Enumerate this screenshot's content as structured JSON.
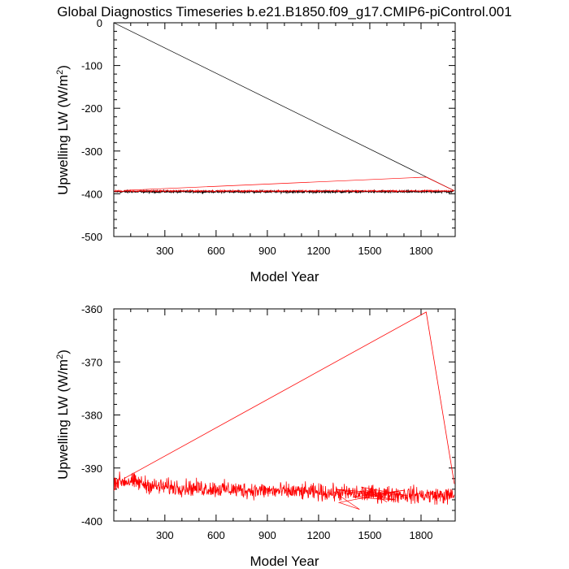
{
  "title": "Global Diagnostics Timeseries b.e21.B1850.f09_g17.CMIP6-piControl.001",
  "colors": {
    "series_red": "#ff0000",
    "series_black": "#000000",
    "axis": "#000000",
    "background": "#ffffff"
  },
  "chart_data": [
    {
      "type": "line",
      "title": "Global Diagnostics Timeseries b.e21.B1850.f09_g17.CMIP6-piControl.001",
      "xlabel": "Model Year",
      "ylabel_main": "Upwelling LW (W/m",
      "ylabel_sup": "2",
      "ylabel_close": ")",
      "xlim": [
        1,
        2000
      ],
      "ylim": [
        -500,
        0
      ],
      "xticks": [
        300,
        600,
        900,
        1200,
        1500,
        1800
      ],
      "xtick_labels": [
        "300",
        "600",
        "900",
        "1200",
        "1500",
        "1800"
      ],
      "yticks": [
        0,
        -100,
        -200,
        -300,
        -400,
        -500
      ],
      "ytick_labels": [
        "0",
        "-100",
        "-200",
        "-300",
        "-400",
        "-500"
      ],
      "series": [
        {
          "name": "black",
          "color": "#000000",
          "baseline": -395,
          "noise": 1.6,
          "spikes": [
            [
              1,
              0
            ],
            [
              1995,
              -393
            ]
          ]
        },
        {
          "name": "red",
          "color": "#ff0000",
          "baseline": -393.5,
          "noise": 1.3,
          "spikes": [
            [
              60,
              -392
            ],
            [
              1830,
              -361
            ],
            [
              1995,
              -393
            ]
          ]
        }
      ]
    },
    {
      "type": "line",
      "xlabel": "Model Year",
      "ylabel_main": "Upwelling LW (W/m",
      "ylabel_sup": "2",
      "ylabel_close": ")",
      "xlim": [
        1,
        2000
      ],
      "ylim": [
        -400,
        -360
      ],
      "xticks": [
        300,
        600,
        900,
        1200,
        1500,
        1800
      ],
      "xtick_labels": [
        "300",
        "600",
        "900",
        "1200",
        "1500",
        "1800"
      ],
      "yticks": [
        -360,
        -370,
        -380,
        -390,
        -400
      ],
      "ytick_labels": [
        "-360",
        "-370",
        "-380",
        "-390",
        "-400"
      ],
      "series": [
        {
          "name": "red",
          "color": "#ff0000",
          "trend": [
            [
              1,
              -392.5
            ],
            [
              100,
              -392.5
            ],
            [
              250,
              -393.5
            ],
            [
              500,
              -393.8
            ],
            [
              800,
              -394.2
            ],
            [
              1100,
              -394.5
            ],
            [
              1400,
              -394.8
            ],
            [
              1700,
              -395.0
            ],
            [
              2000,
              -395.3
            ]
          ],
          "noise": 1.1,
          "jump_points": [
            [
              60,
              -392
            ],
            [
              1830,
              -360.6
            ],
            [
              1995,
              -393
            ]
          ],
          "tangle_points": [
            [
              1290,
              -394.5
            ],
            [
              1440,
              -397.8
            ],
            [
              1320,
              -396.5
            ],
            [
              1700,
              -394.2
            ],
            [
              1400,
              -395.5
            ],
            [
              1650,
              -396.0
            ],
            [
              1300,
              -394.0
            ],
            [
              1720,
              -395.2
            ],
            [
              1450,
              -393.6
            ],
            [
              1600,
              -396.4
            ]
          ]
        }
      ]
    }
  ]
}
